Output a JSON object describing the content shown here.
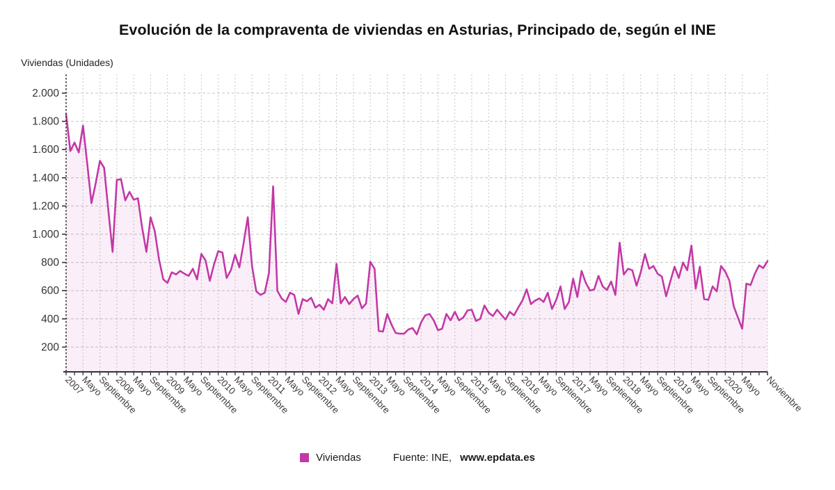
{
  "page": {
    "title": "Evolución de la compraventa de viviendas en Asturias, Principado de, según el INE",
    "y_axis_title": "Viviendas (Unidades)"
  },
  "legend": {
    "series": "Viviendas",
    "source": "Fuente: INE,",
    "source_url": "www.epdata.es"
  },
  "colors": {
    "line": "#c338a6",
    "area_fill": "rgba(195,56,166,0.08)",
    "grid": "#c4c4c4",
    "axis": "#333333",
    "tick_text": "#3e3e3e",
    "y_tick_text": "#333333",
    "title_text": "#111111"
  },
  "chart_data": {
    "type": "area",
    "title": "Evolución de la compraventa de viviendas en Asturias, Principado de, según el INE",
    "xlabel": "",
    "ylabel": "Viviendas (Unidades)",
    "x_unit": "months since Enero 2007, monthly data through Noviembre 2020",
    "x_start": "Enero 2007",
    "x_end": "Noviembre 2020",
    "ylim": [
      0,
      2100
    ],
    "ytick_step": 200,
    "grid": true,
    "legend_position": "bottom-center",
    "series": [
      {
        "name": "Viviendas",
        "values": [
          1850,
          1590,
          1650,
          1580,
          1770,
          1500,
          1220,
          1360,
          1520,
          1470,
          1170,
          875,
          1385,
          1390,
          1240,
          1300,
          1245,
          1255,
          1045,
          875,
          1120,
          1020,
          820,
          680,
          655,
          730,
          715,
          740,
          720,
          705,
          755,
          680,
          860,
          815,
          670,
          785,
          880,
          870,
          690,
          745,
          855,
          765,
          935,
          1120,
          775,
          595,
          570,
          585,
          725,
          1340,
          600,
          545,
          520,
          585,
          570,
          435,
          540,
          525,
          550,
          480,
          500,
          465,
          540,
          510,
          790,
          510,
          555,
          505,
          540,
          565,
          475,
          510,
          805,
          755,
          315,
          310,
          435,
          360,
          300,
          295,
          295,
          325,
          335,
          290,
          375,
          425,
          435,
          390,
          320,
          330,
          435,
          390,
          450,
          390,
          410,
          460,
          465,
          385,
          400,
          495,
          445,
          420,
          465,
          430,
          395,
          450,
          425,
          480,
          530,
          610,
          505,
          530,
          545,
          520,
          585,
          470,
          535,
          630,
          470,
          520,
          685,
          555,
          740,
          655,
          600,
          610,
          705,
          630,
          605,
          665,
          570,
          940,
          715,
          755,
          745,
          635,
          730,
          860,
          755,
          775,
          720,
          700,
          560,
          665,
          770,
          690,
          800,
          745,
          920,
          615,
          770,
          540,
          535,
          630,
          595,
          775,
          735,
          670,
          490,
          410,
          330,
          650,
          640,
          720,
          780,
          760,
          810
        ]
      }
    ],
    "x_ticks": [
      {
        "m": 0,
        "label": "2007"
      },
      {
        "m": 4,
        "label": "Mayo"
      },
      {
        "m": 8,
        "label": "Septiembre"
      },
      {
        "m": 12,
        "label": "2008"
      },
      {
        "m": 16,
        "label": "Mayo"
      },
      {
        "m": 20,
        "label": "Septiembre"
      },
      {
        "m": 24,
        "label": "2009"
      },
      {
        "m": 28,
        "label": "Mayo"
      },
      {
        "m": 32,
        "label": "Septiembre"
      },
      {
        "m": 36,
        "label": "2010"
      },
      {
        "m": 40,
        "label": "Mayo"
      },
      {
        "m": 44,
        "label": "Septiembre"
      },
      {
        "m": 48,
        "label": "2011"
      },
      {
        "m": 52,
        "label": "Mayo"
      },
      {
        "m": 56,
        "label": "Septiembre"
      },
      {
        "m": 60,
        "label": "2012"
      },
      {
        "m": 64,
        "label": "Mayo"
      },
      {
        "m": 68,
        "label": "Septiembre"
      },
      {
        "m": 72,
        "label": "2013"
      },
      {
        "m": 76,
        "label": "Mayo"
      },
      {
        "m": 80,
        "label": "Septiembre"
      },
      {
        "m": 84,
        "label": "2014"
      },
      {
        "m": 88,
        "label": "Mayo"
      },
      {
        "m": 92,
        "label": "Septiembre"
      },
      {
        "m": 96,
        "label": "2015"
      },
      {
        "m": 100,
        "label": "Mayo"
      },
      {
        "m": 104,
        "label": "Septiembre"
      },
      {
        "m": 108,
        "label": "2016"
      },
      {
        "m": 112,
        "label": "Mayo"
      },
      {
        "m": 116,
        "label": "Septiembre"
      },
      {
        "m": 120,
        "label": "2017"
      },
      {
        "m": 124,
        "label": "Mayo"
      },
      {
        "m": 128,
        "label": "Septiembre"
      },
      {
        "m": 132,
        "label": "2018"
      },
      {
        "m": 136,
        "label": "Mayo"
      },
      {
        "m": 140,
        "label": "Septiembre"
      },
      {
        "m": 144,
        "label": "2019"
      },
      {
        "m": 148,
        "label": "Mayo"
      },
      {
        "m": 152,
        "label": "Septiembre"
      },
      {
        "m": 156,
        "label": "2020"
      },
      {
        "m": 160,
        "label": "Mayo"
      },
      {
        "m": 166,
        "label": "Noviembre"
      }
    ],
    "y_ticks": [
      {
        "value": 2000,
        "label": "2.000"
      },
      {
        "value": 1800,
        "label": "1.800"
      },
      {
        "value": 1600,
        "label": "1.600"
      },
      {
        "value": 1400,
        "label": "1.400"
      },
      {
        "value": 1200,
        "label": "1.200"
      },
      {
        "value": 1000,
        "label": "1.000"
      },
      {
        "value": 800,
        "label": "800"
      },
      {
        "value": 600,
        "label": "600"
      },
      {
        "value": 400,
        "label": "400"
      },
      {
        "value": 200,
        "label": "200"
      }
    ]
  }
}
